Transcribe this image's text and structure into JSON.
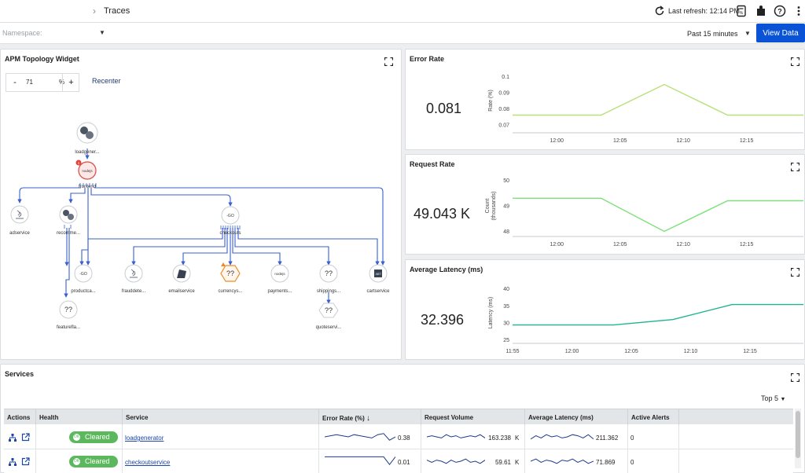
{
  "topbar": {
    "breadcrumb": "Traces",
    "refresh_label": "Last refresh: 12:14 PM",
    "icons": [
      "refresh-icon",
      "document-icon",
      "plugin-icon",
      "help-icon",
      "more-vertical-icon"
    ]
  },
  "filters": {
    "namespace_placeholder": "Namespace:",
    "time_range": "Past 15 minutes",
    "view_button": "View Data"
  },
  "topology": {
    "title": "APM Topology Widget",
    "zoom_minus": "-",
    "zoom_value": "71",
    "zoom_unit": "%",
    "zoom_plus": "+",
    "recenter": "Recenter",
    "alert_badge": "1",
    "nodes": [
      {
        "id": "loadgenerator",
        "label": "loadgener...",
        "icon": "python"
      },
      {
        "id": "frontend",
        "label": "frontend",
        "icon": "nodejs",
        "glyph": "nodejs"
      },
      {
        "id": "adservice",
        "label": "adservice",
        "icon": "java"
      },
      {
        "id": "recommendation",
        "label": "recomme...",
        "icon": "python"
      },
      {
        "id": "checkout",
        "label": "checkouts",
        "icon": "go",
        "glyph": "-GO"
      },
      {
        "id": "productcatalog",
        "label": "productca...",
        "icon": "go",
        "glyph": "-GO"
      },
      {
        "id": "frauddetection",
        "label": "frauddete...",
        "icon": "java"
      },
      {
        "id": "emailservice",
        "label": "emailservice",
        "icon": "ruby"
      },
      {
        "id": "currency",
        "label": "currencys...",
        "icon": "unknown",
        "glyph": "??"
      },
      {
        "id": "payment",
        "label": "payments...",
        "icon": "nodejs",
        "glyph": "nodejs"
      },
      {
        "id": "shipping",
        "label": "shippings...",
        "icon": "unknown",
        "glyph": "??"
      },
      {
        "id": "cartservice",
        "label": "cartservice",
        "icon": "dotnet",
        "glyph": ".NET"
      },
      {
        "id": "featureflag",
        "label": "featurefla...",
        "icon": "unknown",
        "glyph": "??"
      },
      {
        "id": "quoteservice",
        "label": "quoteservi...",
        "icon": "unknown",
        "glyph": "??"
      }
    ]
  },
  "error_rate": {
    "title": "Error Rate",
    "value": "0.081",
    "chart_data": {
      "type": "line",
      "ylabel": "Rate (%)",
      "ylim": [
        0.065,
        0.105
      ],
      "yticks": [
        "0.1",
        "0.09",
        "0.08",
        "0.07"
      ],
      "ytick_values": [
        0.1,
        0.09,
        0.08,
        0.07
      ],
      "xticks": [
        "12:00",
        "12:05",
        "12:10",
        "12:15"
      ],
      "xtick_values": [
        0,
        5,
        10,
        15
      ],
      "xlim": [
        -3.5,
        19.5
      ],
      "x": [
        -3.5,
        3.5,
        8.5,
        13.5,
        19.5
      ],
      "values": [
        0.076,
        0.076,
        0.095,
        0.076,
        0.076
      ],
      "color": "#b9e07a"
    }
  },
  "request_rate": {
    "title": "Request Rate",
    "value": "49.043 K",
    "chart_data": {
      "type": "line",
      "ylabel": "Count (thousands)",
      "ylim": [
        47.8,
        50.2
      ],
      "yticks": [
        "50",
        "49",
        "48"
      ],
      "ytick_values": [
        50,
        49,
        48
      ],
      "xticks": [
        "12:00",
        "12:05",
        "12:10",
        "12:15"
      ],
      "xtick_values": [
        0,
        5,
        10,
        15
      ],
      "xlim": [
        -3.5,
        19.5
      ],
      "x": [
        -3.5,
        3.5,
        8.5,
        13.5,
        19.5
      ],
      "values": [
        49.3,
        49.3,
        48.0,
        49.2,
        49.2
      ],
      "color": "#7ee07a"
    }
  },
  "latency": {
    "title": "Average Latency (ms)",
    "value": "32.396",
    "chart_data": {
      "type": "line",
      "ylabel": "Latency (ms)",
      "ylim": [
        24,
        42
      ],
      "yticks": [
        "40",
        "35",
        "30",
        "25"
      ],
      "ytick_values": [
        40,
        35,
        30,
        25
      ],
      "xticks": [
        "11:55",
        "12:00",
        "12:05",
        "12:10",
        "12:15"
      ],
      "xtick_values": [
        -5,
        0,
        5,
        10,
        15
      ],
      "xlim": [
        -5,
        19.5
      ],
      "x": [
        -5,
        3.5,
        8.5,
        13.5,
        19.5
      ],
      "values": [
        29.4,
        29.4,
        31.0,
        35.4,
        35.4
      ],
      "color": "#1fb58f"
    }
  },
  "services": {
    "title": "Services",
    "top_selector": "Top 5",
    "columns": [
      "Actions",
      "Health",
      "Service",
      "Error Rate (%)",
      "Request Volume",
      "Average Latency (ms)",
      "Active Alerts"
    ],
    "sort_indicator": "↓",
    "rows": [
      {
        "health": "Cleared",
        "service": "loadgenerator",
        "error_rate": "0.38",
        "request_volume": "163.238",
        "request_unit": "K",
        "latency": "211.362",
        "alerts": "0",
        "err_spark": [
          5,
          6,
          7,
          6,
          5,
          7,
          6,
          5,
          4,
          7,
          8,
          2,
          5
        ],
        "req_spark": [
          5,
          6,
          5,
          4,
          7,
          5,
          6,
          4,
          5,
          6,
          5,
          7,
          4
        ],
        "lat_spark": [
          3,
          6,
          4,
          7,
          5,
          6,
          4,
          5,
          7,
          6,
          4,
          7,
          3
        ]
      },
      {
        "health": "Cleared",
        "service": "checkoutservice",
        "error_rate": "0.01",
        "request_volume": "59.61",
        "request_unit": "K",
        "latency": "71.869",
        "alerts": "0",
        "err_spark": [
          9,
          9,
          9,
          9,
          9,
          9,
          9,
          9,
          9,
          9,
          9,
          2,
          9
        ],
        "req_spark": [
          6,
          4,
          6,
          5,
          3,
          6,
          4,
          5,
          7,
          4,
          5,
          3,
          6
        ],
        "lat_spark": [
          5,
          7,
          4,
          6,
          5,
          3,
          6,
          5,
          7,
          4,
          6,
          3,
          5
        ]
      }
    ]
  }
}
